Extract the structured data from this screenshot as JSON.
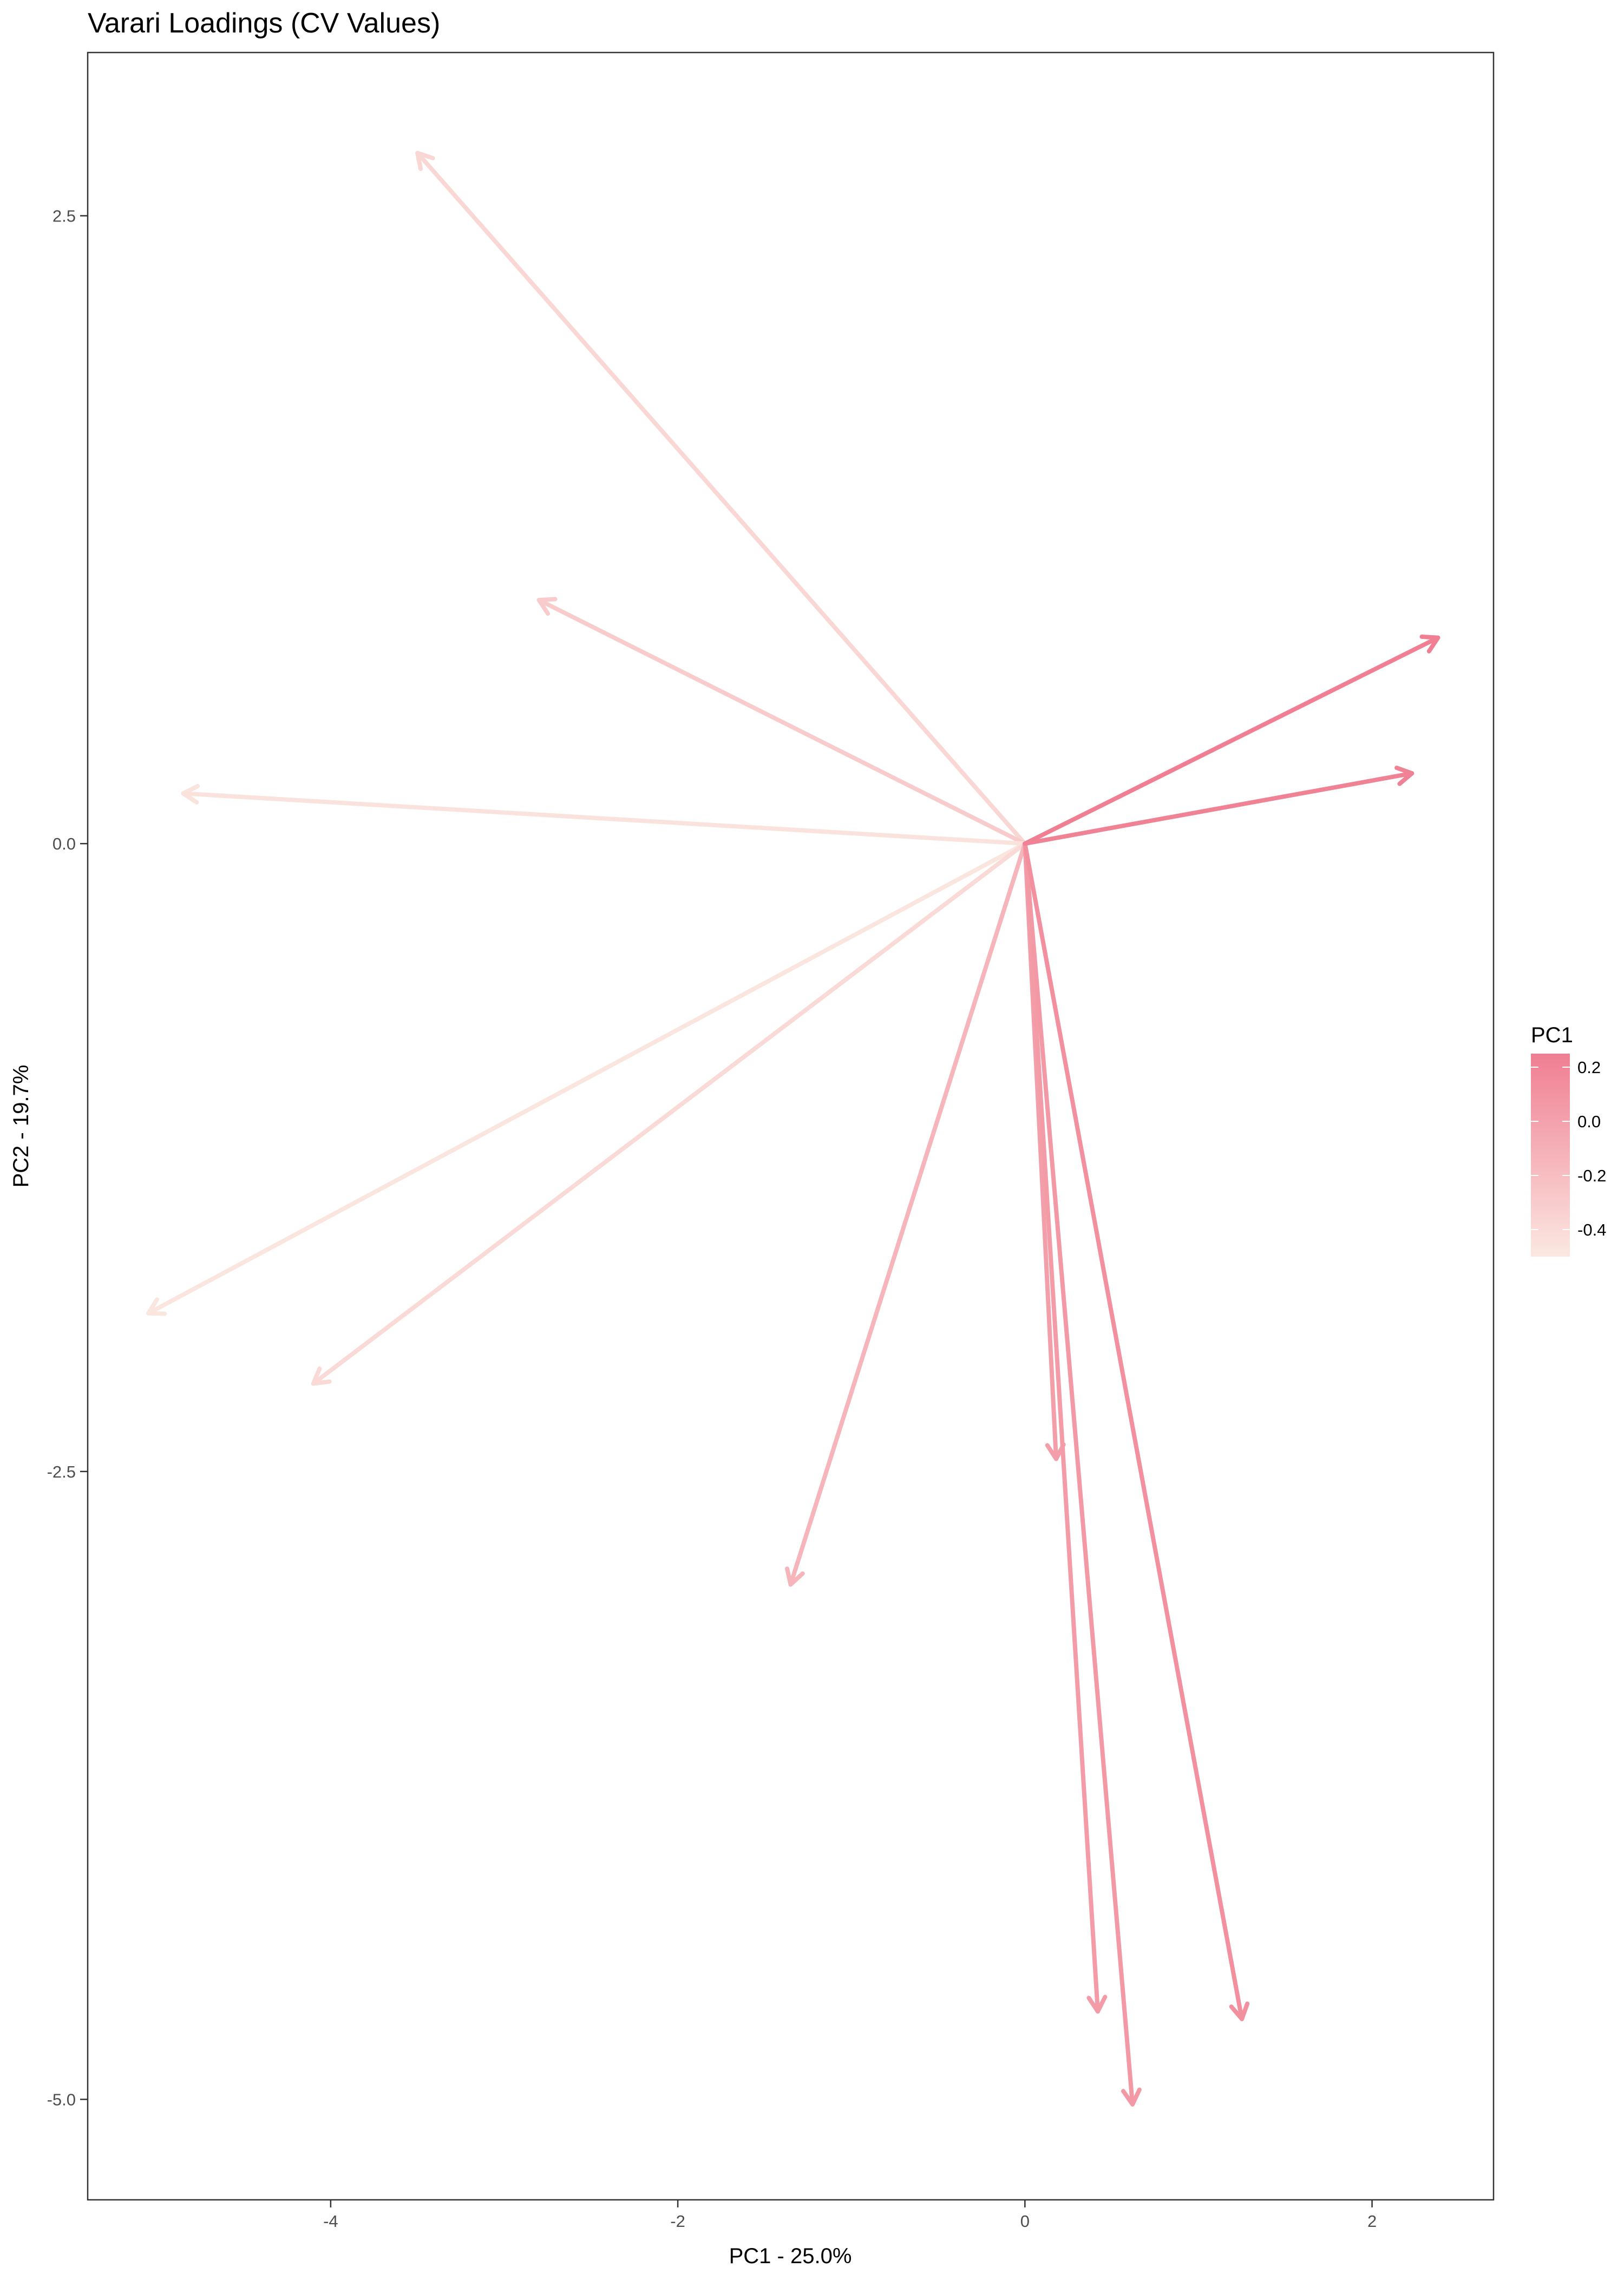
{
  "chart_data": {
    "type": "line",
    "subtype": "loading-vectors",
    "title": "Varari Loadings (CV Values)",
    "xlabel": "PC1 - 25.0%",
    "ylabel": "PC2 - 19.7%",
    "xlim": [
      -5.4,
      2.7
    ],
    "ylim": [
      -5.4,
      3.15
    ],
    "x_ticks": [
      {
        "value": -4,
        "label": "-4"
      },
      {
        "value": -2,
        "label": "-2"
      },
      {
        "value": 0,
        "label": "0"
      },
      {
        "value": 2,
        "label": "2"
      }
    ],
    "y_ticks": [
      {
        "value": 2.5,
        "label": "2.5"
      },
      {
        "value": 0,
        "label": "0.0"
      },
      {
        "value": -2.5,
        "label": "-2.5"
      },
      {
        "value": -5,
        "label": "-5.0"
      }
    ],
    "grid": false,
    "origin": [
      0,
      0
    ],
    "color_variable": "PC1",
    "vectors": [
      {
        "x": -3.5,
        "y": 2.75,
        "pc1": -0.38
      },
      {
        "x": -2.8,
        "y": 0.97,
        "pc1": -0.3
      },
      {
        "x": -4.85,
        "y": 0.2,
        "pc1": -0.46
      },
      {
        "x": -5.05,
        "y": -1.87,
        "pc1": -0.48
      },
      {
        "x": -4.1,
        "y": -2.15,
        "pc1": -0.4
      },
      {
        "x": -1.35,
        "y": -2.95,
        "pc1": -0.14
      },
      {
        "x": 0.18,
        "y": -2.45,
        "pc1": 0.02
      },
      {
        "x": 0.42,
        "y": -4.65,
        "pc1": 0.04
      },
      {
        "x": 0.62,
        "y": -5.02,
        "pc1": 0.06
      },
      {
        "x": 1.25,
        "y": -4.68,
        "pc1": 0.12
      },
      {
        "x": 2.38,
        "y": 0.82,
        "pc1": 0.24
      },
      {
        "x": 2.23,
        "y": 0.28,
        "pc1": 0.22
      }
    ],
    "legend": {
      "title": "PC1",
      "position": "right",
      "range": [
        -0.5,
        0.25
      ],
      "low_color": "#fbe8e1",
      "high_color": "#f07e92",
      "ticks": [
        {
          "value": 0.2,
          "label": "0.2"
        },
        {
          "value": 0.0,
          "label": "0.0"
        },
        {
          "value": -0.2,
          "label": "-0.2"
        },
        {
          "value": -0.4,
          "label": "-0.4"
        }
      ]
    }
  }
}
